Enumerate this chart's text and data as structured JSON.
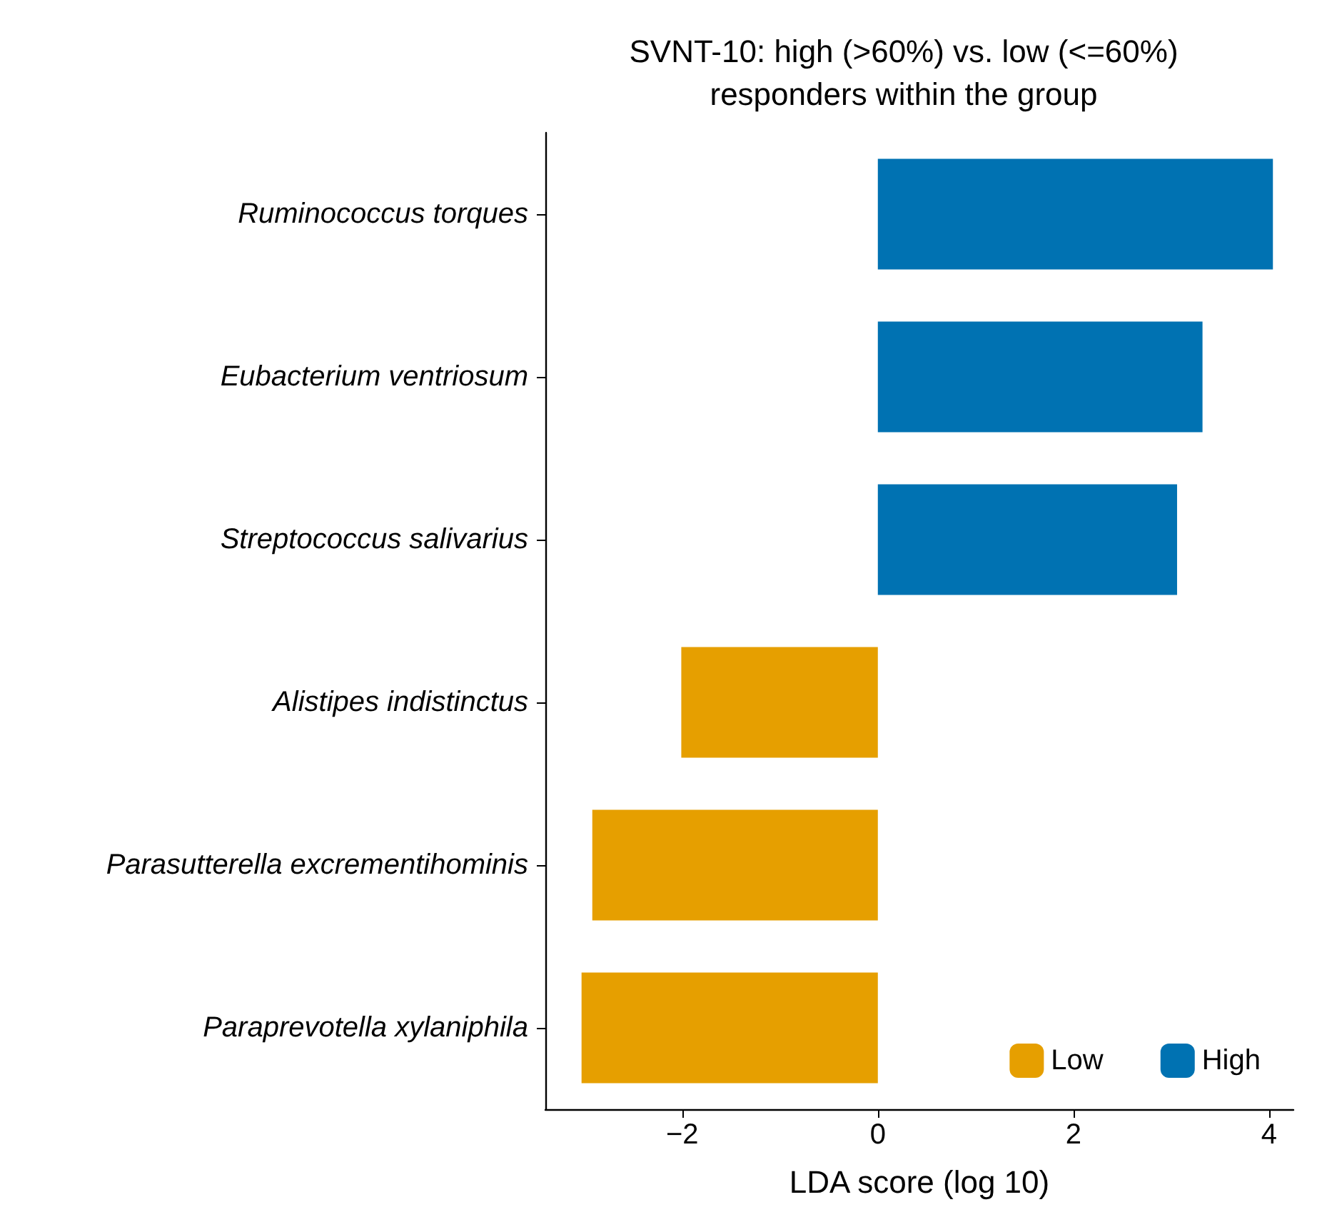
{
  "chart_data": {
    "type": "bar",
    "orientation": "horizontal",
    "title": "SVNT-10: high (>60%) vs. low (<=60%)\nresponders within the group",
    "xlabel": "LDA score (log 10)",
    "categories": [
      "Ruminococcus torques",
      "Eubacterium ventriosum",
      "Streptococcus salivarius",
      "Alistipes indistinctus",
      "Parasutterella excrementihominis",
      "Paraprevotella xylaniphila"
    ],
    "series": [
      {
        "name": "Low",
        "color": "#e69f00",
        "values": [
          null,
          null,
          null,
          -2.01,
          -2.92,
          -3.03
        ]
      },
      {
        "name": "High",
        "color": "#0072b2",
        "values": [
          4.04,
          3.32,
          3.06,
          null,
          null,
          null
        ]
      }
    ],
    "xlim": [
      -3.4,
      4.25
    ],
    "xticks": [
      {
        "value": -2,
        "label": "−2"
      },
      0,
      2,
      4
    ],
    "grid": false,
    "legend": "bottom right"
  }
}
